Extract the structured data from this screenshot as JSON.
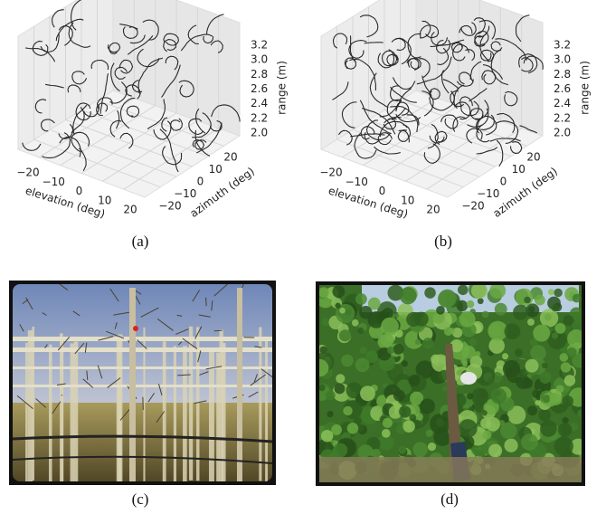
{
  "panels": [
    {
      "caption": "(a)",
      "x_label": "elevation (deg)",
      "y_label": "azimuth (deg)",
      "z_label": "range (m)",
      "x_ticks": [
        "−20",
        "−10",
        "0",
        "10",
        "20"
      ],
      "y_ticks": [
        "−20",
        "−10",
        "0",
        "10",
        "20"
      ],
      "z_ticks": [
        "2.0",
        "2.2",
        "2.4",
        "2.6",
        "2.8",
        "3.0",
        "3.2"
      ]
    },
    {
      "caption": "(b)",
      "x_label": "elevation (deg)",
      "y_label": "azimuth (deg)",
      "z_label": "range (m)",
      "x_ticks": [
        "−20",
        "−10",
        "0",
        "10",
        "20"
      ],
      "y_ticks": [
        "−20",
        "−10",
        "0",
        "10",
        "20"
      ],
      "z_ticks": [
        "2.0",
        "2.2",
        "2.4",
        "2.6",
        "2.8",
        "3.0",
        "3.2"
      ]
    },
    {
      "caption": "(c)"
    },
    {
      "caption": "(d)"
    }
  ]
}
